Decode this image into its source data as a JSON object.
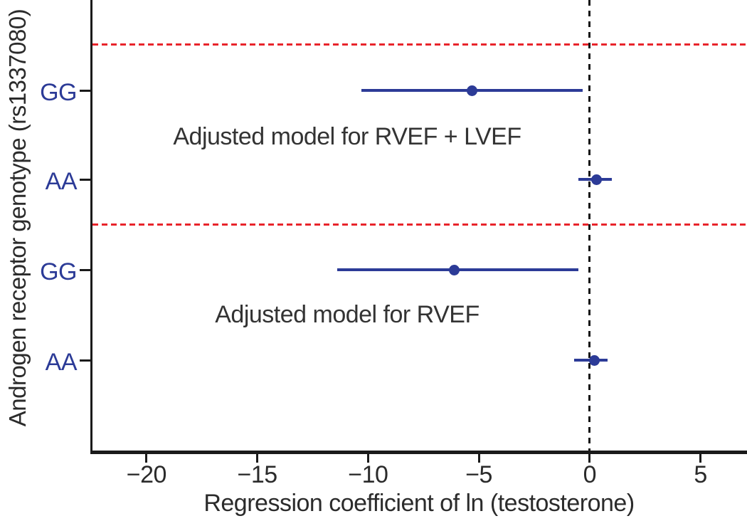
{
  "chart_data": {
    "type": "scatter",
    "subtype": "forest-plot",
    "title": "",
    "xlabel": "Regression coefficient of ln (testosterone)",
    "ylabel": "Androgen receptor genotype (rs1337080)",
    "xlim": [
      -22.5,
      7.1
    ],
    "x_ticks": [
      -20,
      -15,
      -10,
      -5,
      0,
      5
    ],
    "x_tick_labels": [
      "−20",
      "−15",
      "−10",
      "−5",
      "0",
      "5"
    ],
    "y_categories_top_to_bottom": [
      "GG",
      "AA",
      "GG",
      "AA"
    ],
    "reference_line_x": 0,
    "grid": false,
    "legend": "none",
    "separators": "red dashed horizontal lines above each model group",
    "groups": [
      {
        "label": "Adjusted model for RVEF + LVEF",
        "points": [
          {
            "genotype": "GG",
            "estimate": -5.3,
            "ci_low": -10.3,
            "ci_high": -0.3
          },
          {
            "genotype": "AA",
            "estimate": 0.3,
            "ci_low": -0.5,
            "ci_high": 1.0
          }
        ]
      },
      {
        "label": "Adjusted model for RVEF",
        "points": [
          {
            "genotype": "GG",
            "estimate": -6.1,
            "ci_low": -11.4,
            "ci_high": -0.5
          },
          {
            "genotype": "AA",
            "estimate": 0.2,
            "ci_low": -0.7,
            "ci_high": 0.8
          }
        ]
      }
    ],
    "colors": {
      "point_and_ci": "#2c3b97",
      "genotype_label": "#2c3b97",
      "separator_line": "#e8242b",
      "reference_line": "#161616",
      "axis": "#1a1a1a",
      "text": "#2b2b2b"
    }
  }
}
